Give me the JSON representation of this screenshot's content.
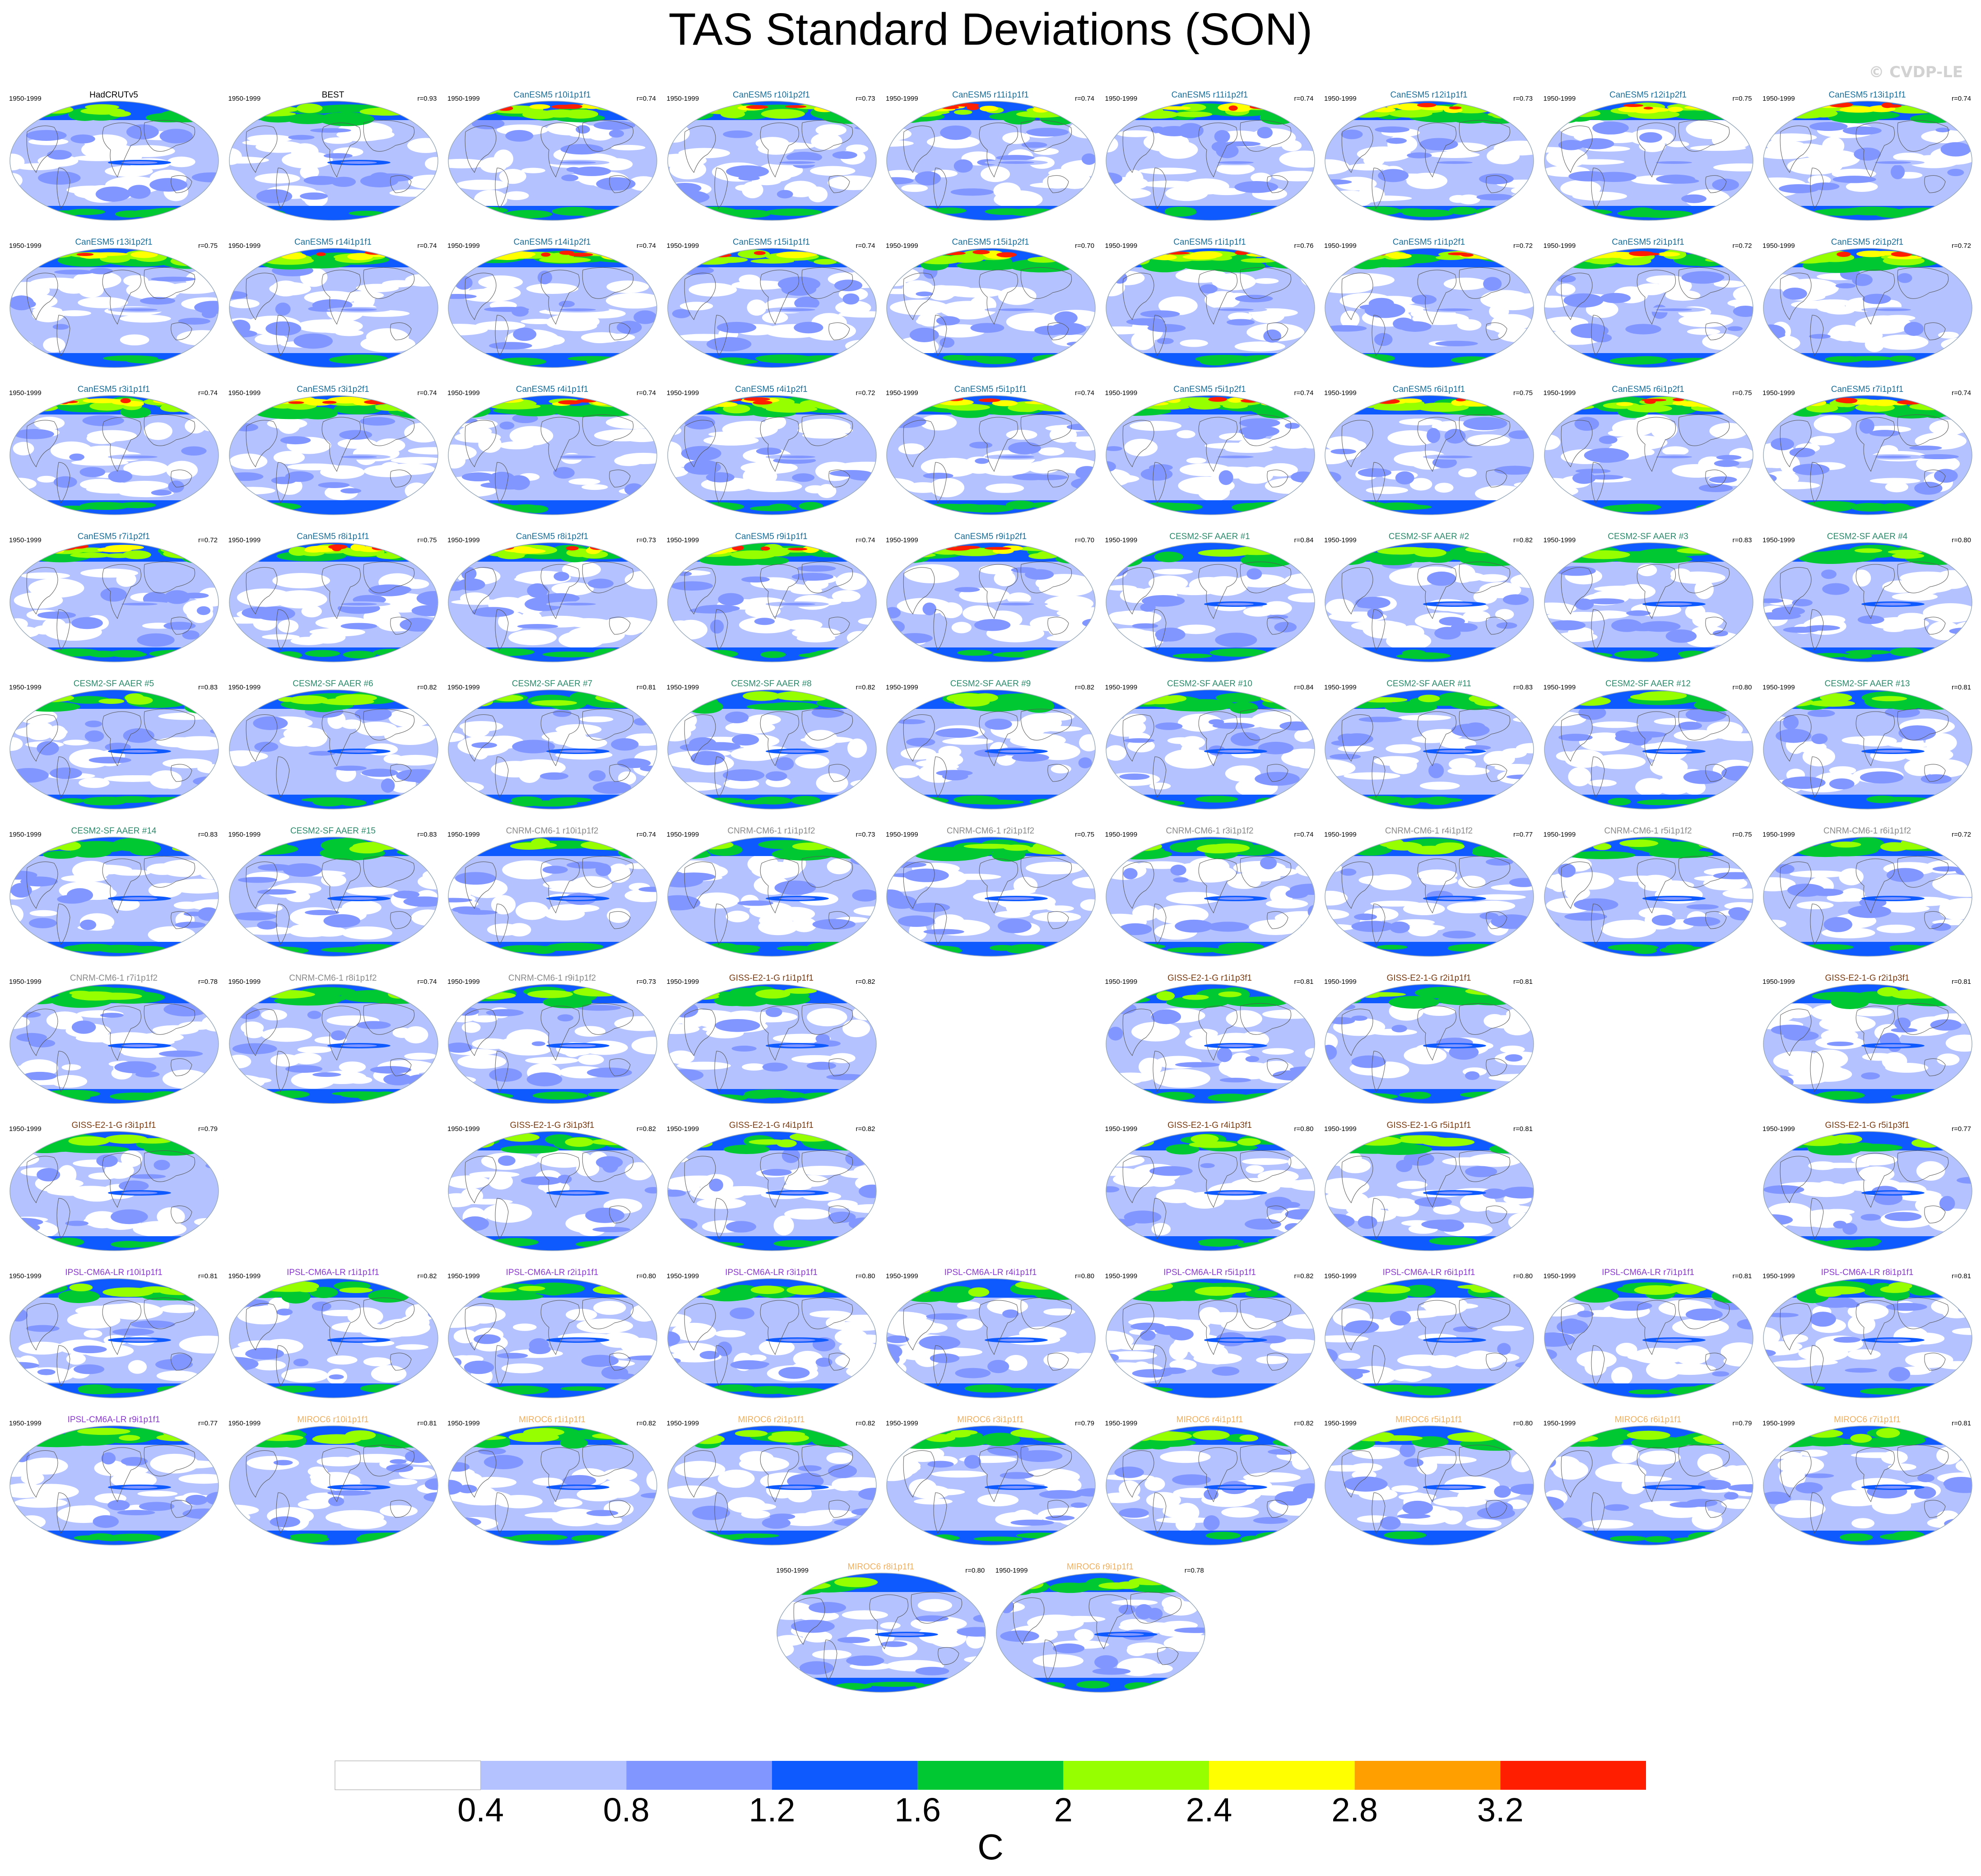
{
  "title": "TAS Standard Deviations (SON)",
  "watermark": "© CVDP-LE",
  "chart_data": {
    "type": "map-panel-grid",
    "period": "1950-1999",
    "units": "C",
    "colorbar": {
      "levels": [
        0.4,
        0.8,
        1.2,
        1.6,
        2,
        2.4,
        2.8,
        3.2
      ],
      "labels": [
        "0.4",
        "0.8",
        "1.2",
        "1.6",
        "2",
        "2.4",
        "2.8",
        "3.2"
      ],
      "colors": [
        "#ffffff",
        "#b4c3ff",
        "#8296ff",
        "#0f5aff",
        "#00c832",
        "#96ff00",
        "#ffff00",
        "#ffa000",
        "#ff1e00"
      ]
    },
    "family_colors": {
      "obs": "#000000",
      "CanESM5": "#1a6e9a",
      "CESM2": "#2a8a6a",
      "CNRM": "#8a8a8a",
      "GISS": "#7a3a10",
      "IPSL": "#8a3acf",
      "MIROC": "#f0b060"
    },
    "panels": [
      {
        "row": 0,
        "col": 0,
        "name": "HadCRUTv5",
        "r": "",
        "family": "obs"
      },
      {
        "row": 0,
        "col": 1,
        "name": "BEST",
        "r": "r=0.93",
        "family": "obs"
      },
      {
        "row": 0,
        "col": 2,
        "name": "CanESM5 r10i1p1f1",
        "r": "r=0.74",
        "family": "CanESM5"
      },
      {
        "row": 0,
        "col": 3,
        "name": "CanESM5 r10i1p2f1",
        "r": "r=0.73",
        "family": "CanESM5"
      },
      {
        "row": 0,
        "col": 4,
        "name": "CanESM5 r11i1p1f1",
        "r": "r=0.74",
        "family": "CanESM5"
      },
      {
        "row": 0,
        "col": 5,
        "name": "CanESM5 r11i1p2f1",
        "r": "r=0.74",
        "family": "CanESM5"
      },
      {
        "row": 0,
        "col": 6,
        "name": "CanESM5 r12i1p1f1",
        "r": "r=0.73",
        "family": "CanESM5"
      },
      {
        "row": 0,
        "col": 7,
        "name": "CanESM5 r12i1p2f1",
        "r": "r=0.75",
        "family": "CanESM5"
      },
      {
        "row": 0,
        "col": 8,
        "name": "CanESM5 r13i1p1f1",
        "r": "r=0.74",
        "family": "CanESM5"
      },
      {
        "row": 1,
        "col": 0,
        "name": "CanESM5 r13i1p2f1",
        "r": "r=0.75",
        "family": "CanESM5"
      },
      {
        "row": 1,
        "col": 1,
        "name": "CanESM5 r14i1p1f1",
        "r": "r=0.74",
        "family": "CanESM5"
      },
      {
        "row": 1,
        "col": 2,
        "name": "CanESM5 r14i1p2f1",
        "r": "r=0.74",
        "family": "CanESM5"
      },
      {
        "row": 1,
        "col": 3,
        "name": "CanESM5 r15i1p1f1",
        "r": "r=0.74",
        "family": "CanESM5"
      },
      {
        "row": 1,
        "col": 4,
        "name": "CanESM5 r15i1p2f1",
        "r": "r=0.70",
        "family": "CanESM5"
      },
      {
        "row": 1,
        "col": 5,
        "name": "CanESM5 r1i1p1f1",
        "r": "r=0.76",
        "family": "CanESM5"
      },
      {
        "row": 1,
        "col": 6,
        "name": "CanESM5 r1i1p2f1",
        "r": "r=0.72",
        "family": "CanESM5"
      },
      {
        "row": 1,
        "col": 7,
        "name": "CanESM5 r2i1p1f1",
        "r": "r=0.72",
        "family": "CanESM5"
      },
      {
        "row": 1,
        "col": 8,
        "name": "CanESM5 r2i1p2f1",
        "r": "r=0.72",
        "family": "CanESM5"
      },
      {
        "row": 2,
        "col": 0,
        "name": "CanESM5 r3i1p1f1",
        "r": "r=0.74",
        "family": "CanESM5"
      },
      {
        "row": 2,
        "col": 1,
        "name": "CanESM5 r3i1p2f1",
        "r": "r=0.74",
        "family": "CanESM5"
      },
      {
        "row": 2,
        "col": 2,
        "name": "CanESM5 r4i1p1f1",
        "r": "r=0.74",
        "family": "CanESM5"
      },
      {
        "row": 2,
        "col": 3,
        "name": "CanESM5 r4i1p2f1",
        "r": "r=0.72",
        "family": "CanESM5"
      },
      {
        "row": 2,
        "col": 4,
        "name": "CanESM5 r5i1p1f1",
        "r": "r=0.74",
        "family": "CanESM5"
      },
      {
        "row": 2,
        "col": 5,
        "name": "CanESM5 r5i1p2f1",
        "r": "r=0.74",
        "family": "CanESM5"
      },
      {
        "row": 2,
        "col": 6,
        "name": "CanESM5 r6i1p1f1",
        "r": "r=0.75",
        "family": "CanESM5"
      },
      {
        "row": 2,
        "col": 7,
        "name": "CanESM5 r6i1p2f1",
        "r": "r=0.75",
        "family": "CanESM5"
      },
      {
        "row": 2,
        "col": 8,
        "name": "CanESM5 r7i1p1f1",
        "r": "r=0.74",
        "family": "CanESM5"
      },
      {
        "row": 3,
        "col": 0,
        "name": "CanESM5 r7i1p2f1",
        "r": "r=0.72",
        "family": "CanESM5"
      },
      {
        "row": 3,
        "col": 1,
        "name": "CanESM5 r8i1p1f1",
        "r": "r=0.75",
        "family": "CanESM5"
      },
      {
        "row": 3,
        "col": 2,
        "name": "CanESM5 r8i1p2f1",
        "r": "r=0.73",
        "family": "CanESM5"
      },
      {
        "row": 3,
        "col": 3,
        "name": "CanESM5 r9i1p1f1",
        "r": "r=0.74",
        "family": "CanESM5"
      },
      {
        "row": 3,
        "col": 4,
        "name": "CanESM5 r9i1p2f1",
        "r": "r=0.70",
        "family": "CanESM5"
      },
      {
        "row": 3,
        "col": 5,
        "name": "CESM2-SF AAER #1",
        "r": "r=0.84",
        "family": "CESM2"
      },
      {
        "row": 3,
        "col": 6,
        "name": "CESM2-SF AAER #2",
        "r": "r=0.82",
        "family": "CESM2"
      },
      {
        "row": 3,
        "col": 7,
        "name": "CESM2-SF AAER #3",
        "r": "r=0.83",
        "family": "CESM2"
      },
      {
        "row": 3,
        "col": 8,
        "name": "CESM2-SF AAER #4",
        "r": "r=0.80",
        "family": "CESM2"
      },
      {
        "row": 4,
        "col": 0,
        "name": "CESM2-SF AAER #5",
        "r": "r=0.83",
        "family": "CESM2"
      },
      {
        "row": 4,
        "col": 1,
        "name": "CESM2-SF AAER #6",
        "r": "r=0.82",
        "family": "CESM2"
      },
      {
        "row": 4,
        "col": 2,
        "name": "CESM2-SF AAER #7",
        "r": "r=0.81",
        "family": "CESM2"
      },
      {
        "row": 4,
        "col": 3,
        "name": "CESM2-SF AAER #8",
        "r": "r=0.82",
        "family": "CESM2"
      },
      {
        "row": 4,
        "col": 4,
        "name": "CESM2-SF AAER #9",
        "r": "r=0.82",
        "family": "CESM2"
      },
      {
        "row": 4,
        "col": 5,
        "name": "CESM2-SF AAER #10",
        "r": "r=0.84",
        "family": "CESM2"
      },
      {
        "row": 4,
        "col": 6,
        "name": "CESM2-SF AAER #11",
        "r": "r=0.83",
        "family": "CESM2"
      },
      {
        "row": 4,
        "col": 7,
        "name": "CESM2-SF AAER #12",
        "r": "r=0.80",
        "family": "CESM2"
      },
      {
        "row": 4,
        "col": 8,
        "name": "CESM2-SF AAER #13",
        "r": "r=0.81",
        "family": "CESM2"
      },
      {
        "row": 5,
        "col": 0,
        "name": "CESM2-SF AAER #14",
        "r": "r=0.83",
        "family": "CESM2"
      },
      {
        "row": 5,
        "col": 1,
        "name": "CESM2-SF AAER #15",
        "r": "r=0.83",
        "family": "CESM2"
      },
      {
        "row": 5,
        "col": 2,
        "name": "CNRM-CM6-1 r10i1p1f2",
        "r": "r=0.74",
        "family": "CNRM"
      },
      {
        "row": 5,
        "col": 3,
        "name": "CNRM-CM6-1 r1i1p1f2",
        "r": "r=0.73",
        "family": "CNRM"
      },
      {
        "row": 5,
        "col": 4,
        "name": "CNRM-CM6-1 r2i1p1f2",
        "r": "r=0.75",
        "family": "CNRM"
      },
      {
        "row": 5,
        "col": 5,
        "name": "CNRM-CM6-1 r3i1p1f2",
        "r": "r=0.74",
        "family": "CNRM"
      },
      {
        "row": 5,
        "col": 6,
        "name": "CNRM-CM6-1 r4i1p1f2",
        "r": "r=0.77",
        "family": "CNRM"
      },
      {
        "row": 5,
        "col": 7,
        "name": "CNRM-CM6-1 r5i1p1f2",
        "r": "r=0.75",
        "family": "CNRM"
      },
      {
        "row": 5,
        "col": 8,
        "name": "CNRM-CM6-1 r6i1p1f2",
        "r": "r=0.72",
        "family": "CNRM"
      },
      {
        "row": 6,
        "col": 0,
        "name": "CNRM-CM6-1 r7i1p1f2",
        "r": "r=0.78",
        "family": "CNRM"
      },
      {
        "row": 6,
        "col": 1,
        "name": "CNRM-CM6-1 r8i1p1f2",
        "r": "r=0.74",
        "family": "CNRM"
      },
      {
        "row": 6,
        "col": 2,
        "name": "CNRM-CM6-1 r9i1p1f2",
        "r": "r=0.73",
        "family": "CNRM"
      },
      {
        "row": 6,
        "col": 3,
        "name": "GISS-E2-1-G r1i1p1f1",
        "r": "r=0.82",
        "family": "GISS"
      },
      {
        "row": 6,
        "col": 5,
        "name": "GISS-E2-1-G r1i1p3f1",
        "r": "r=0.81",
        "family": "GISS"
      },
      {
        "row": 6,
        "col": 6,
        "name": "GISS-E2-1-G r2i1p1f1",
        "r": "r=0.81",
        "family": "GISS"
      },
      {
        "row": 6,
        "col": 8,
        "name": "GISS-E2-1-G r2i1p3f1",
        "r": "r=0.81",
        "family": "GISS"
      },
      {
        "row": 7,
        "col": 0,
        "name": "GISS-E2-1-G r3i1p1f1",
        "r": "r=0.79",
        "family": "GISS"
      },
      {
        "row": 7,
        "col": 2,
        "name": "GISS-E2-1-G r3i1p3f1",
        "r": "r=0.82",
        "family": "GISS"
      },
      {
        "row": 7,
        "col": 3,
        "name": "GISS-E2-1-G r4i1p1f1",
        "r": "r=0.82",
        "family": "GISS"
      },
      {
        "row": 7,
        "col": 5,
        "name": "GISS-E2-1-G r4i1p3f1",
        "r": "r=0.80",
        "family": "GISS"
      },
      {
        "row": 7,
        "col": 6,
        "name": "GISS-E2-1-G r5i1p1f1",
        "r": "r=0.81",
        "family": "GISS"
      },
      {
        "row": 7,
        "col": 8,
        "name": "GISS-E2-1-G r5i1p3f1",
        "r": "r=0.77",
        "family": "GISS"
      },
      {
        "row": 8,
        "col": 0,
        "name": "IPSL-CM6A-LR r10i1p1f1",
        "r": "r=0.81",
        "family": "IPSL"
      },
      {
        "row": 8,
        "col": 1,
        "name": "IPSL-CM6A-LR r1i1p1f1",
        "r": "r=0.82",
        "family": "IPSL"
      },
      {
        "row": 8,
        "col": 2,
        "name": "IPSL-CM6A-LR r2i1p1f1",
        "r": "r=0.80",
        "family": "IPSL"
      },
      {
        "row": 8,
        "col": 3,
        "name": "IPSL-CM6A-LR r3i1p1f1",
        "r": "r=0.80",
        "family": "IPSL"
      },
      {
        "row": 8,
        "col": 4,
        "name": "IPSL-CM6A-LR r4i1p1f1",
        "r": "r=0.80",
        "family": "IPSL"
      },
      {
        "row": 8,
        "col": 5,
        "name": "IPSL-CM6A-LR r5i1p1f1",
        "r": "r=0.82",
        "family": "IPSL"
      },
      {
        "row": 8,
        "col": 6,
        "name": "IPSL-CM6A-LR r6i1p1f1",
        "r": "r=0.80",
        "family": "IPSL"
      },
      {
        "row": 8,
        "col": 7,
        "name": "IPSL-CM6A-LR r7i1p1f1",
        "r": "r=0.81",
        "family": "IPSL"
      },
      {
        "row": 8,
        "col": 8,
        "name": "IPSL-CM6A-LR r8i1p1f1",
        "r": "r=0.81",
        "family": "IPSL"
      },
      {
        "row": 9,
        "col": 0,
        "name": "IPSL-CM6A-LR r9i1p1f1",
        "r": "r=0.77",
        "family": "IPSL"
      },
      {
        "row": 9,
        "col": 1,
        "name": "MIROC6 r10i1p1f1",
        "r": "r=0.81",
        "family": "MIROC"
      },
      {
        "row": 9,
        "col": 2,
        "name": "MIROC6 r1i1p1f1",
        "r": "r=0.82",
        "family": "MIROC"
      },
      {
        "row": 9,
        "col": 3,
        "name": "MIROC6 r2i1p1f1",
        "r": "r=0.82",
        "family": "MIROC"
      },
      {
        "row": 9,
        "col": 4,
        "name": "MIROC6 r3i1p1f1",
        "r": "r=0.79",
        "family": "MIROC"
      },
      {
        "row": 9,
        "col": 5,
        "name": "MIROC6 r4i1p1f1",
        "r": "r=0.82",
        "family": "MIROC"
      },
      {
        "row": 9,
        "col": 6,
        "name": "MIROC6 r5i1p1f1",
        "r": "r=0.80",
        "family": "MIROC"
      },
      {
        "row": 9,
        "col": 7,
        "name": "MIROC6 r6i1p1f1",
        "r": "r=0.79",
        "family": "MIROC"
      },
      {
        "row": 9,
        "col": 8,
        "name": "MIROC6 r7i1p1f1",
        "r": "r=0.81",
        "family": "MIROC"
      },
      {
        "row": 10,
        "col": 3.5,
        "name": "MIROC6 r8i1p1f1",
        "r": "r=0.80",
        "family": "MIROC"
      },
      {
        "row": 10,
        "col": 4.5,
        "name": "MIROC6 r9i1p1f1",
        "r": "r=0.78",
        "family": "MIROC"
      }
    ]
  }
}
